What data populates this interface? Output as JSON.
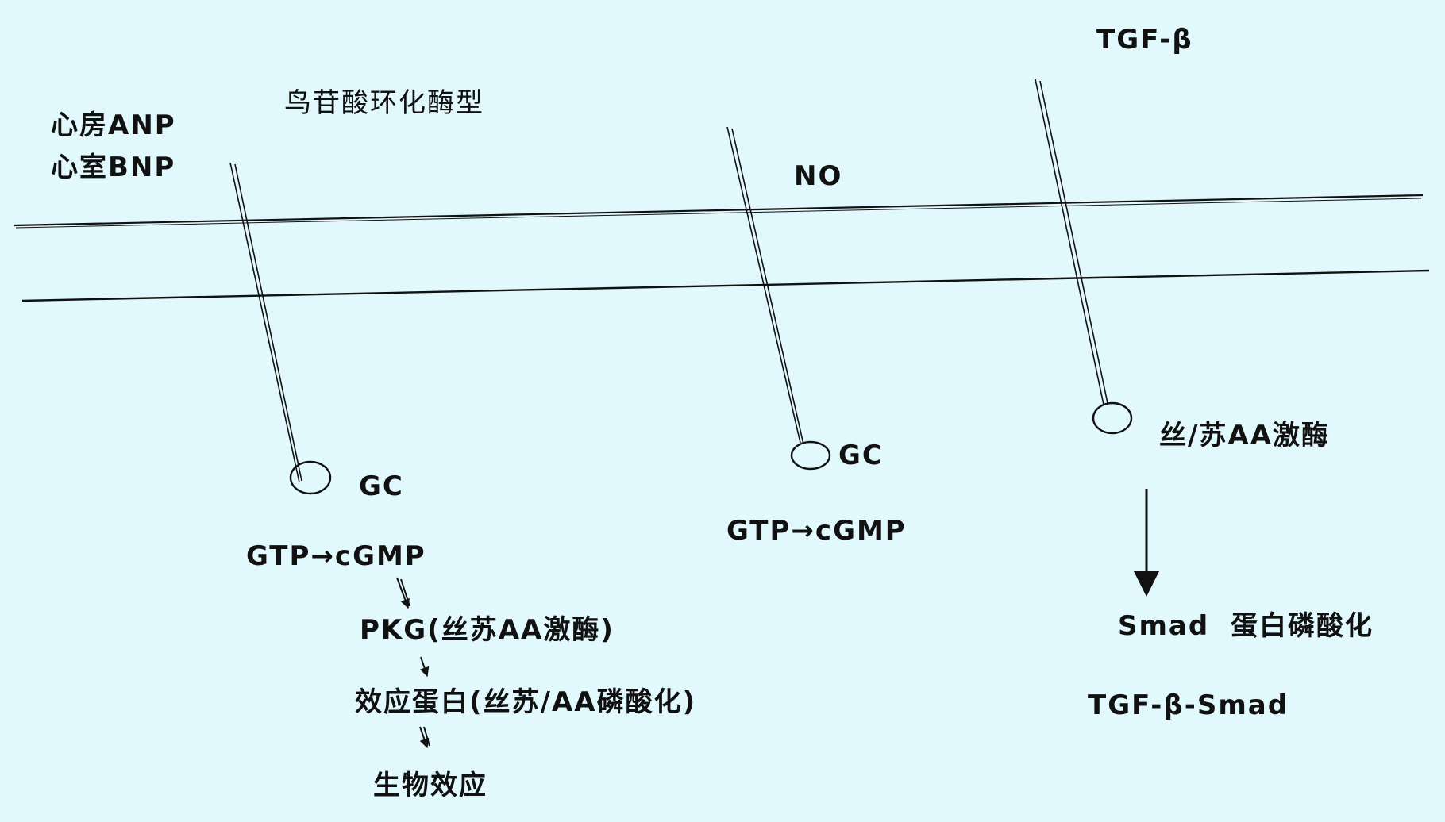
{
  "colors": {
    "background": "#e1f8fc",
    "ink": "#111111"
  },
  "labels": {
    "header_gc_type": "鸟苷酸环化酶型",
    "atrial_anp": "心房ANP",
    "ventricular_bnp": "心室BNP",
    "no": "NO",
    "tgf_beta": "TGF-β",
    "gc_left": "GC",
    "gc_middle": "GC",
    "kinase_right": "丝/苏AA激酶",
    "gtp_cgmp_left": "GTP→cGMP",
    "gtp_cgmp_middle": "GTP→cGMP",
    "pkg": "PKG(丝苏AA激酶)",
    "effector_protein": "效应蛋白(丝苏/AA磷酸化)",
    "bio_effect": "生物效应",
    "smad": "Smad",
    "protein_phosphorylation": "蛋白磷酸化",
    "tgf_smad": "TGF-β-Smad"
  }
}
